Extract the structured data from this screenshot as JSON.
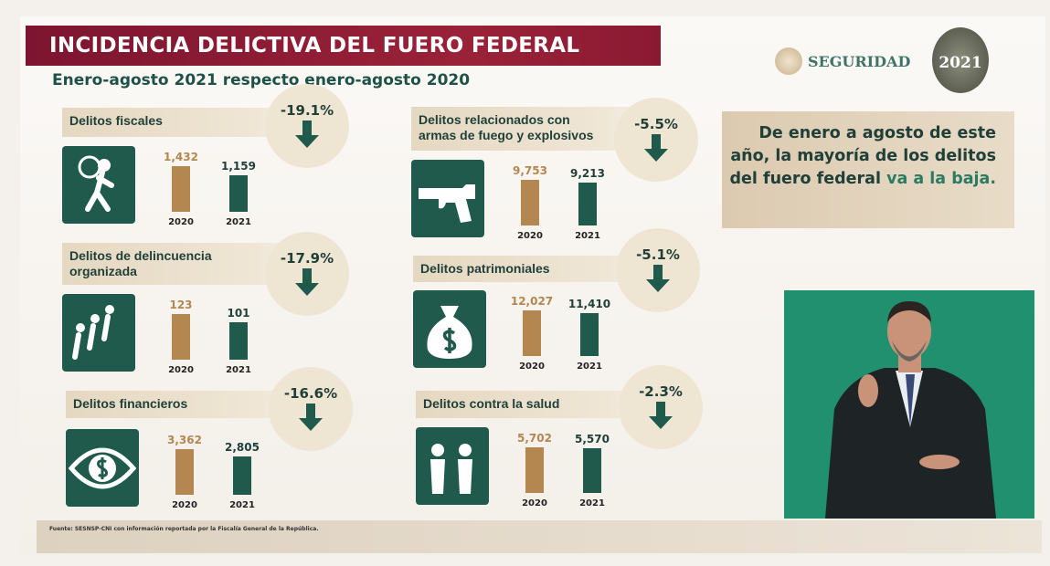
{
  "title": "INCIDENCIA DELICTIVA DEL FUERO FEDERAL",
  "subtitle": "Enero-agosto 2021 respecto enero-agosto 2020",
  "logo": {
    "text": "SEGURIDAD",
    "badge": "2021"
  },
  "callout": {
    "text": "De enero a agosto de este año, la mayoría de los delitos del fuero federal",
    "highlight": "va a la baja."
  },
  "footer": "Fuente: SESNSP-CNI con información reportada por la Fiscalía General de la República.",
  "colors": {
    "title_bg": "#8c1d34",
    "bar_2020": "#b3874f",
    "bar_2021": "#1f5a4c",
    "icon_bg": "#1f5a4c",
    "video_bg": "#21906f"
  },
  "chart_data": [
    {
      "type": "bar",
      "title": "Delitos fiscales",
      "change": "-19.1%",
      "icon": "thief-icon",
      "categories": [
        "2020",
        "2021"
      ],
      "values": [
        1432,
        1159
      ],
      "labels": [
        "1,432",
        "1,159"
      ]
    },
    {
      "type": "bar",
      "title": "Delitos de delincuencia organizada",
      "change": "-17.9%",
      "icon": "organized-crime-icon",
      "categories": [
        "2020",
        "2021"
      ],
      "values": [
        123,
        101
      ],
      "labels": [
        "123",
        "101"
      ]
    },
    {
      "type": "bar",
      "title": "Delitos financieros",
      "change": "-16.6%",
      "icon": "money-eye-icon",
      "categories": [
        "2020",
        "2021"
      ],
      "values": [
        3362,
        2805
      ],
      "labels": [
        "3,362",
        "2,805"
      ]
    },
    {
      "type": "bar",
      "title": "Delitos relacionados con armas de fuego y explosivos",
      "change": "-5.5%",
      "icon": "revolver-icon",
      "categories": [
        "2020",
        "2021"
      ],
      "values": [
        9753,
        9213
      ],
      "labels": [
        "9,753",
        "9,213"
      ]
    },
    {
      "type": "bar",
      "title": "Delitos patrimoniales",
      "change": "-5.1%",
      "icon": "money-bag-icon",
      "categories": [
        "2020",
        "2021"
      ],
      "values": [
        12027,
        11410
      ],
      "labels": [
        "12,027",
        "11,410"
      ]
    },
    {
      "type": "bar",
      "title": "Delitos contra la salud",
      "change": "-2.3%",
      "icon": "health-workers-icon",
      "categories": [
        "2020",
        "2021"
      ],
      "values": [
        5702,
        5570
      ],
      "labels": [
        "5,702",
        "5,570"
      ]
    }
  ]
}
